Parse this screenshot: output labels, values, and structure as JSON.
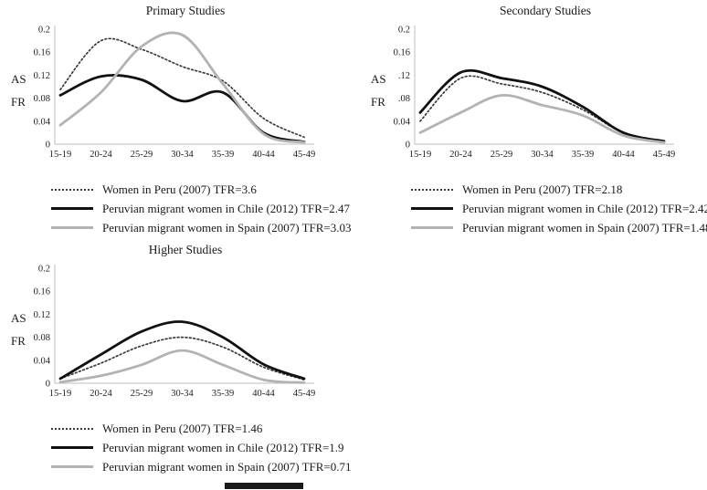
{
  "chart_data": {
    "type": "line",
    "ylabel": "ASFR",
    "ylabel_lines": [
      "AS",
      "FR"
    ],
    "xlabel": "",
    "ylim": [
      0,
      0.2
    ],
    "ytick_step": 0.04,
    "grid": false,
    "legend_position": "bottom",
    "categories": [
      "15-19",
      "20-24",
      "25-29",
      "30-34",
      "35-39",
      "40-44",
      "45-49"
    ],
    "charts": [
      {
        "title": "Primary Studies",
        "yticks": [
          "0.2",
          "0.16",
          "0.12",
          "0.08",
          "0.04",
          "0"
        ],
        "series": [
          {
            "name": "women-in-peru",
            "label": "Women in Peru (2007)  TFR=3.6",
            "style": "dotted",
            "color": "#3a3a3a",
            "values": [
              0.095,
              0.18,
              0.165,
              0.135,
              0.11,
              0.045,
              0.012
            ]
          },
          {
            "name": "peruvian-migrant-women-in-chile",
            "label": "Peruvian migrant women in Chile (2012)  TFR=2.47",
            "style": "solid",
            "color": "#111111",
            "values": [
              0.085,
              0.118,
              0.112,
              0.075,
              0.09,
              0.02,
              0.004
            ]
          },
          {
            "name": "peruvian-migrant-women-in-spain",
            "label": "Peruvian migrant women in Spain (2007) TFR=3.03",
            "style": "solid",
            "color": "#b3b3b3",
            "values": [
              0.033,
              0.09,
              0.17,
              0.19,
              0.105,
              0.018,
              0.003
            ]
          }
        ]
      },
      {
        "title": "Secondary Studies",
        "yticks": [
          "0.2",
          "0.16",
          ".12",
          ".08",
          "0.04",
          "0"
        ],
        "series": [
          {
            "name": "women-in-peru",
            "label": "Women in Peru (2007)  TFR=2.18",
            "style": "dotted",
            "color": "#3a3a3a",
            "values": [
              0.04,
              0.115,
              0.105,
              0.09,
              0.06,
              0.02,
              0.005
            ]
          },
          {
            "name": "peruvian-migrant-women-in-chile",
            "label": "Peruvian migrant women in Chile (2012)  TFR=2.42",
            "style": "solid",
            "color": "#111111",
            "values": [
              0.055,
              0.125,
              0.115,
              0.1,
              0.065,
              0.02,
              0.005
            ]
          },
          {
            "name": "peruvian-migrant-women-in-spain",
            "label": "Peruvian migrant women in Spain (2007) TFR=1.48",
            "style": "solid",
            "color": "#b3b3b3",
            "values": [
              0.02,
              0.055,
              0.085,
              0.068,
              0.05,
              0.015,
              0.003
            ]
          }
        ]
      },
      {
        "title": "Higher Studies",
        "yticks": [
          "0.2",
          "0.16",
          "0.12",
          "0.08",
          "0.04",
          "0"
        ],
        "series": [
          {
            "name": "women-in-peru",
            "label": "Women in Peru (2007)  TFR=1.46",
            "style": "dotted",
            "color": "#3a3a3a",
            "values": [
              0.008,
              0.035,
              0.065,
              0.08,
              0.063,
              0.028,
              0.006
            ]
          },
          {
            "name": "peruvian-migrant-women-in-chile",
            "label": "Peruvian migrant women in Chile (2012)  TFR=1.9",
            "style": "solid",
            "color": "#111111",
            "values": [
              0.008,
              0.05,
              0.09,
              0.107,
              0.08,
              0.033,
              0.008
            ]
          },
          {
            "name": "peruvian-migrant-women-in-spain",
            "label": "Peruvian migrant women in Spain (2007) TFR=0.71",
            "style": "solid",
            "color": "#b3b3b3",
            "values": [
              0.002,
              0.013,
              0.032,
              0.057,
              0.032,
              0.006,
              0.001
            ]
          }
        ]
      }
    ]
  }
}
